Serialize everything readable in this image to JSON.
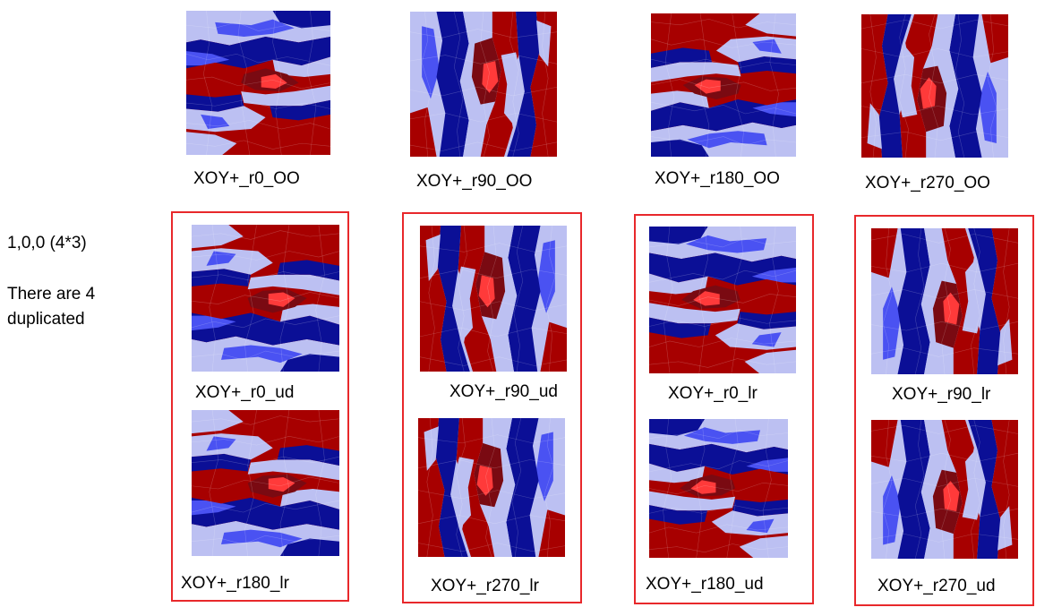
{
  "note": {
    "line1": "1,0,0 (4*3)",
    "line2": "There are 4",
    "line3": "duplicated"
  },
  "colors": {
    "dark_red": "#a70000",
    "bright_red": "#ff3a3a",
    "crimson": "#7a0a12",
    "navy": "#0b0f96",
    "blue": "#4a52f2",
    "light_blue": "#bcc0f2",
    "box_border": "#e8282b"
  },
  "top_row": [
    {
      "caption": "XOY+_r0_OO",
      "orientation": "horizontal"
    },
    {
      "caption": "XOY+_r90_OO",
      "orientation": "vertical"
    },
    {
      "caption": "XOY+_r180_OO",
      "orientation": "horizontal"
    },
    {
      "caption": "XOY+_r270_OO",
      "orientation": "vertical"
    }
  ],
  "groups": [
    {
      "captions": [
        "XOY+_r0_ud",
        "XOY+_r180_lr"
      ]
    },
    {
      "captions": [
        "XOY+_r90_ud",
        "XOY+_r270_lr"
      ]
    },
    {
      "captions": [
        "XOY+_r0_lr",
        "XOY+_r180_ud"
      ]
    },
    {
      "captions": [
        "XOY+_r90_lr",
        "XOY+_r270_ud"
      ]
    }
  ]
}
